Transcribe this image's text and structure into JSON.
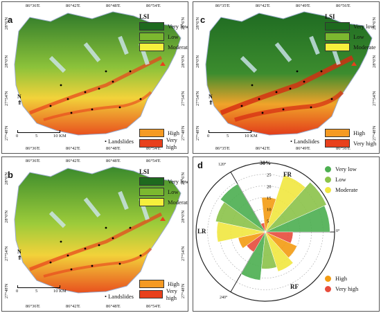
{
  "panels": [
    {
      "letter": "a",
      "coords_top": [
        "86°36'E",
        "86°42'E",
        "86°48'E",
        "86°54'E"
      ],
      "coords_bottom": [
        "86°36'E",
        "86°42'E",
        "86°48'E",
        "86°54'E"
      ],
      "coords_left": [
        "28°6'N",
        "28°0'N",
        "27°54'N",
        "27°48'N"
      ],
      "coords_right": [
        "28°6'N",
        "28°0'N",
        "27°54'N",
        "27°48'N"
      ],
      "scale_ticks": [
        "0",
        "5",
        "10 KM"
      ],
      "north": "N"
    },
    {
      "letter": "b",
      "coords_top": [
        "86°36'E",
        "86°42'E",
        "86°48'E",
        "86°54'E"
      ],
      "coords_bottom": [
        "86°36'E",
        "86°42'E",
        "86°48'E",
        "86°54'E"
      ],
      "coords_left": [
        "28°6'N",
        "28°0'N",
        "27°54'N",
        "27°48'N"
      ],
      "coords_right": [
        "28°6'N",
        "28°0'N",
        "27°54'N",
        "27°48'N"
      ],
      "scale_ticks": [
        "0",
        "5",
        "10 KM"
      ],
      "north": "N"
    },
    {
      "letter": "c",
      "coords_top": [
        "86°35'E",
        "86°42'E",
        "86°49'E",
        "86°56'E"
      ],
      "coords_bottom": [
        "86°35'E",
        "86°42'E",
        "86°49'E",
        "86°56'E"
      ],
      "coords_left": [
        "28°6'N",
        "28°0'N",
        "27°54'N",
        "27°48'N"
      ],
      "coords_right": [
        "28°6'N",
        "28°0'N",
        "27°54'N",
        "27°48'N"
      ],
      "scale_ticks": [
        "0",
        "5",
        "10 KM"
      ],
      "north": "N"
    }
  ],
  "legend": {
    "title": "LSI",
    "upper": [
      {
        "label": "Very low",
        "color": "#1e6a1e"
      },
      {
        "label": "Low",
        "color": "#7cb82f"
      },
      {
        "label": "Moderate",
        "color": "#f5f03c"
      }
    ],
    "lower": [
      {
        "label": "High",
        "color": "#f59a23"
      },
      {
        "label": "Very high",
        "color": "#e8401c"
      }
    ],
    "landslides_label": "Landslides"
  },
  "polar": {
    "letter": "d",
    "radial_max_label": "30%",
    "radial_ticks": [
      "5",
      "10",
      "15",
      "20",
      "25"
    ],
    "angle_labels": [
      "120°",
      "240°",
      "0°"
    ],
    "model_labels": [
      "FR",
      "LR",
      "RF"
    ],
    "legend_upper": [
      {
        "label": "Very low",
        "color": "#4caf50"
      },
      {
        "label": "Low",
        "color": "#8bc34a"
      },
      {
        "label": "Moderate",
        "color": "#f1e740"
      }
    ],
    "legend_lower": [
      {
        "label": "High",
        "color": "#f39c12"
      },
      {
        "label": "Very high",
        "color": "#e74c3c"
      }
    ]
  },
  "chart_data": {
    "type": "polar-bar",
    "categories": [
      "FR",
      "RF",
      "LR"
    ],
    "series": [
      {
        "name": "Very low",
        "values": [
          28,
          21,
          24
        ]
      },
      {
        "name": "Low",
        "values": [
          29,
          16,
          22
        ]
      },
      {
        "name": "Moderate",
        "values": [
          26,
          18,
          21
        ]
      },
      {
        "name": "High",
        "values": [
          15,
          15,
          12
        ]
      },
      {
        "name": "Very high",
        "values": [
          4,
          12,
          10
        ]
      }
    ],
    "ylim": [
      0,
      30
    ]
  }
}
